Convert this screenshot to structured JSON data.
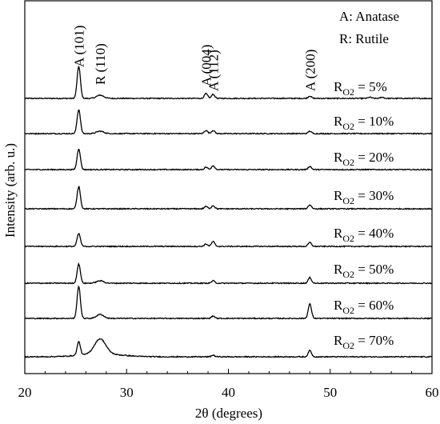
{
  "chart_data": {
    "type": "line",
    "title": "",
    "xlabel": "2θ (degrees)",
    "ylabel": "Intensity (arb. u.)",
    "xlim": [
      20,
      60
    ],
    "xticks": [
      "20",
      "30",
      "40",
      "50",
      "60"
    ],
    "yticks_visible": false,
    "grid": false,
    "legend": {
      "placement": "top-right",
      "entries": [
        "A: Anatase",
        "R: Rutile"
      ]
    },
    "peak_annotations": [
      {
        "label": "A (101)",
        "x": 25.3
      },
      {
        "label": "R (110)",
        "x": 27.4
      },
      {
        "label": "A (004)",
        "x": 37.8
      },
      {
        "label": "A (112)",
        "x": 38.5
      },
      {
        "label": "A (200)",
        "x": 48.0
      }
    ],
    "series": [
      {
        "label_main": "R",
        "label_sub": "O2",
        "label_value": " = 5%",
        "baseline": 1.0,
        "peaks": [
          {
            "x": 25.3,
            "h": 40
          },
          {
            "x": 27.4,
            "h": 4
          },
          {
            "x": 37.8,
            "h": 6
          },
          {
            "x": 38.5,
            "h": 5
          },
          {
            "x": 48.0,
            "h": 3
          },
          {
            "x": 53.9,
            "h": 1.5
          },
          {
            "x": 55.1,
            "h": 1.5
          }
        ]
      },
      {
        "label_main": "R",
        "label_sub": "O2",
        "label_value": " = 10%",
        "baseline": 0.0,
        "peaks": [
          {
            "x": 25.3,
            "h": 30
          },
          {
            "x": 27.4,
            "h": 3
          },
          {
            "x": 37.8,
            "h": 4
          },
          {
            "x": 38.5,
            "h": 4
          },
          {
            "x": 48.0,
            "h": 3
          }
        ]
      },
      {
        "label_main": "R",
        "label_sub": "O2",
        "label_value": " = 20%",
        "baseline": 0.0,
        "peaks": [
          {
            "x": 25.3,
            "h": 26
          },
          {
            "x": 37.8,
            "h": 3
          },
          {
            "x": 38.5,
            "h": 5
          },
          {
            "x": 48.0,
            "h": 4
          }
        ]
      },
      {
        "label_main": "R",
        "label_sub": "O2",
        "label_value": " = 30%",
        "baseline": 0.0,
        "peaks": [
          {
            "x": 25.3,
            "h": 28
          },
          {
            "x": 37.8,
            "h": 3
          },
          {
            "x": 38.5,
            "h": 4
          },
          {
            "x": 48.0,
            "h": 5
          }
        ]
      },
      {
        "label_main": "R",
        "label_sub": "O2",
        "label_value": " = 40%",
        "baseline": 0.0,
        "peaks": [
          {
            "x": 25.3,
            "h": 16
          },
          {
            "x": 37.8,
            "h": 3
          },
          {
            "x": 38.5,
            "h": 6
          },
          {
            "x": 48.0,
            "h": 5
          }
        ]
      },
      {
        "label_main": "R",
        "label_sub": "O2",
        "label_value": " = 50%",
        "baseline": 0.0,
        "peaks": [
          {
            "x": 25.3,
            "h": 24
          },
          {
            "x": 27.4,
            "h": 3
          },
          {
            "x": 38.5,
            "h": 3
          },
          {
            "x": 48.0,
            "h": 7
          }
        ]
      },
      {
        "label_main": "R",
        "label_sub": "O2",
        "label_value": " = 60%",
        "baseline": 0.0,
        "peaks": [
          {
            "x": 25.3,
            "h": 40
          },
          {
            "x": 27.4,
            "h": 5
          },
          {
            "x": 38.5,
            "h": 3
          },
          {
            "x": 48.0,
            "h": 18
          }
        ]
      },
      {
        "label_main": "R",
        "label_sub": "O2",
        "label_value": " = 70%",
        "baseline": 0.0,
        "peaks": [
          {
            "x": 25.3,
            "h": 17
          },
          {
            "x": 27.4,
            "h": 19
          },
          {
            "x": 38.5,
            "h": 2
          },
          {
            "x": 48.0,
            "h": 8
          }
        ]
      }
    ]
  }
}
